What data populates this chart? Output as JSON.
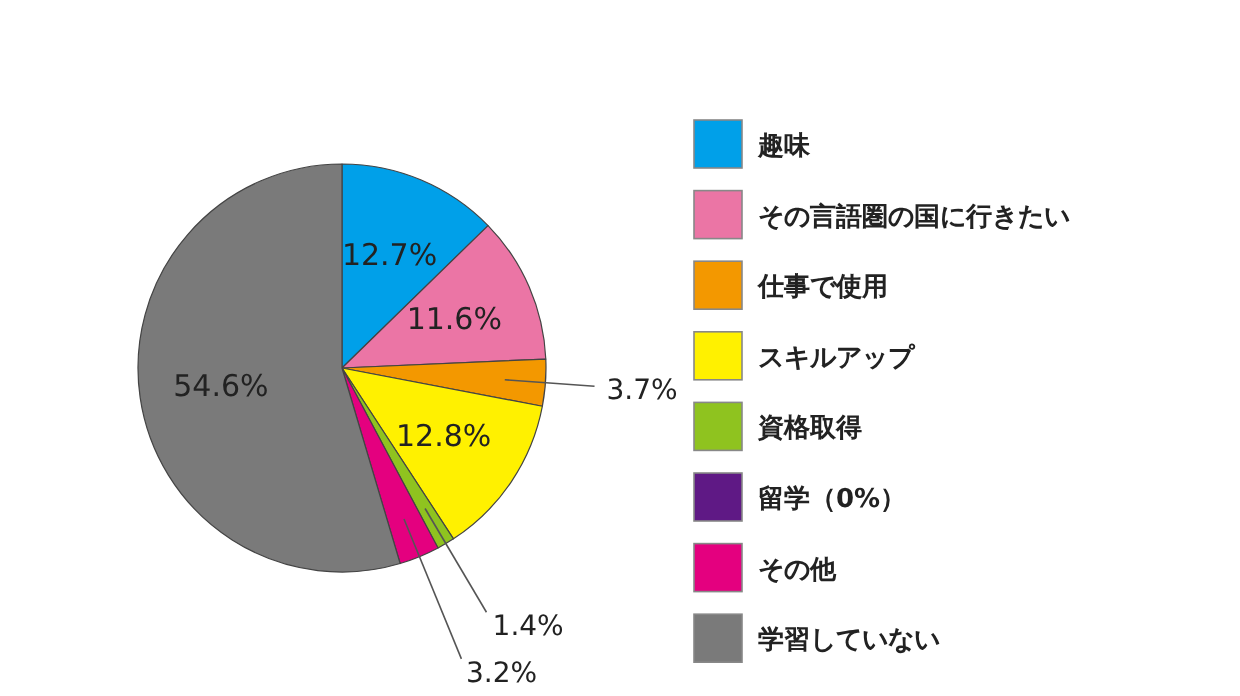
{
  "chart_data": {
    "type": "pie",
    "categories": [
      "趣味",
      "その言語圏の国に行きたい",
      "仕事で使用",
      "スキルアップ",
      "資格取得",
      "留学（0%）",
      "その他",
      "学習していない"
    ],
    "values": [
      12.7,
      11.6,
      3.7,
      12.8,
      1.4,
      0,
      3.2,
      54.6
    ],
    "value_labels": [
      "12.7%",
      "11.6%",
      "3.7%",
      "12.8%",
      "1.4%",
      null,
      "3.2%",
      "54.6%"
    ],
    "colors": [
      "#00a0e9",
      "#eb75a5",
      "#f39800",
      "#fff100",
      "#8fc31f",
      "#5f1985",
      "#e4007f",
      "#7a7a7a"
    ],
    "legend": "right"
  }
}
